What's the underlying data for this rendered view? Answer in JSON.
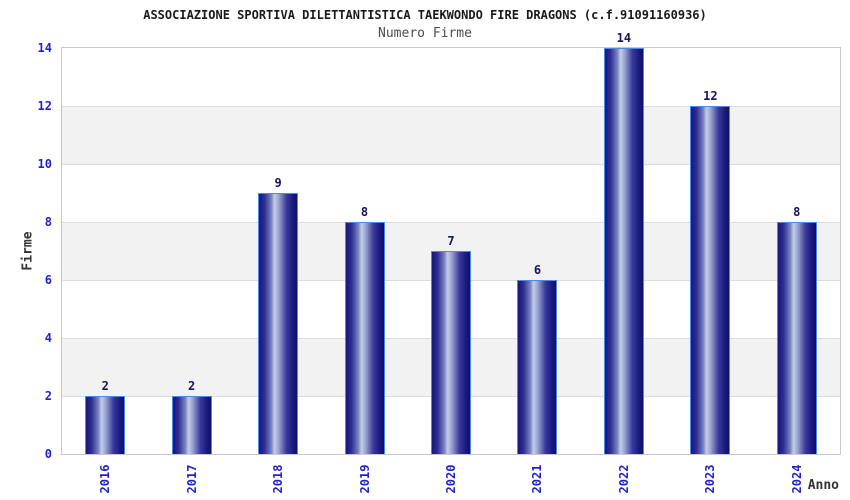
{
  "chart_data": {
    "type": "bar",
    "title": "ASSOCIAZIONE SPORTIVA DILETTANTISTICA TAEKWONDO FIRE DRAGONS (c.f.91091160936)",
    "subtitle": "Numero Firme",
    "xlabel": "Anno",
    "ylabel": "Firme",
    "categories": [
      "2016",
      "2017",
      "2018",
      "2019",
      "2020",
      "2021",
      "2022",
      "2023",
      "2024"
    ],
    "values": [
      2,
      2,
      9,
      8,
      7,
      6,
      14,
      12,
      8
    ],
    "ylim": [
      0,
      14
    ],
    "ytick_step": 2,
    "grid": "horizontal-lines-with-alternating-bands",
    "legend": "none",
    "colors": {
      "title": "#1a1a1a",
      "subtitle": "#4d4d4d",
      "axis_label": "#333333",
      "tick_label": "#2222cc",
      "value_label": "#14145f",
      "bar_dark": "#17177a",
      "bar_highlight": "#c6cdea",
      "bar_border": "#4d8ae8",
      "band": "#f2f2f2",
      "gridline": "#dcdcdc",
      "plot_border": "#c8c8c8",
      "background": "#ffffff"
    }
  }
}
